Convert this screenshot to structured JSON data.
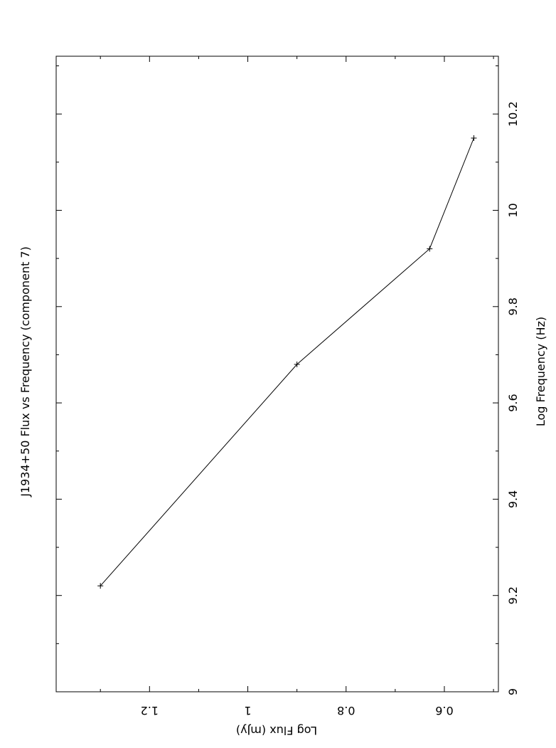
{
  "chart_data": {
    "type": "line",
    "title": "J1934+50 Flux vs Frequency (component 7)",
    "xlabel": "Log Frequency (Hz)",
    "ylabel": "Log Flux (mJy)",
    "orientation": "rotated 90° clockwise (page landscape)",
    "xlim": [
      9.0,
      10.32
    ],
    "ylim": [
      0.49,
      1.39
    ],
    "x_ticks": [
      "9",
      "9.2",
      "9.4",
      "9.6",
      "9.8",
      "10",
      "10.2"
    ],
    "y_ticks": [
      "0.6",
      "0.8",
      "1",
      "1.2"
    ],
    "grid": false,
    "series": [
      {
        "x": [
          9.22,
          9.68,
          9.92,
          10.15
        ],
        "y": [
          1.3,
          0.9,
          0.63,
          0.54
        ],
        "marker": "plus",
        "line": true
      }
    ]
  }
}
